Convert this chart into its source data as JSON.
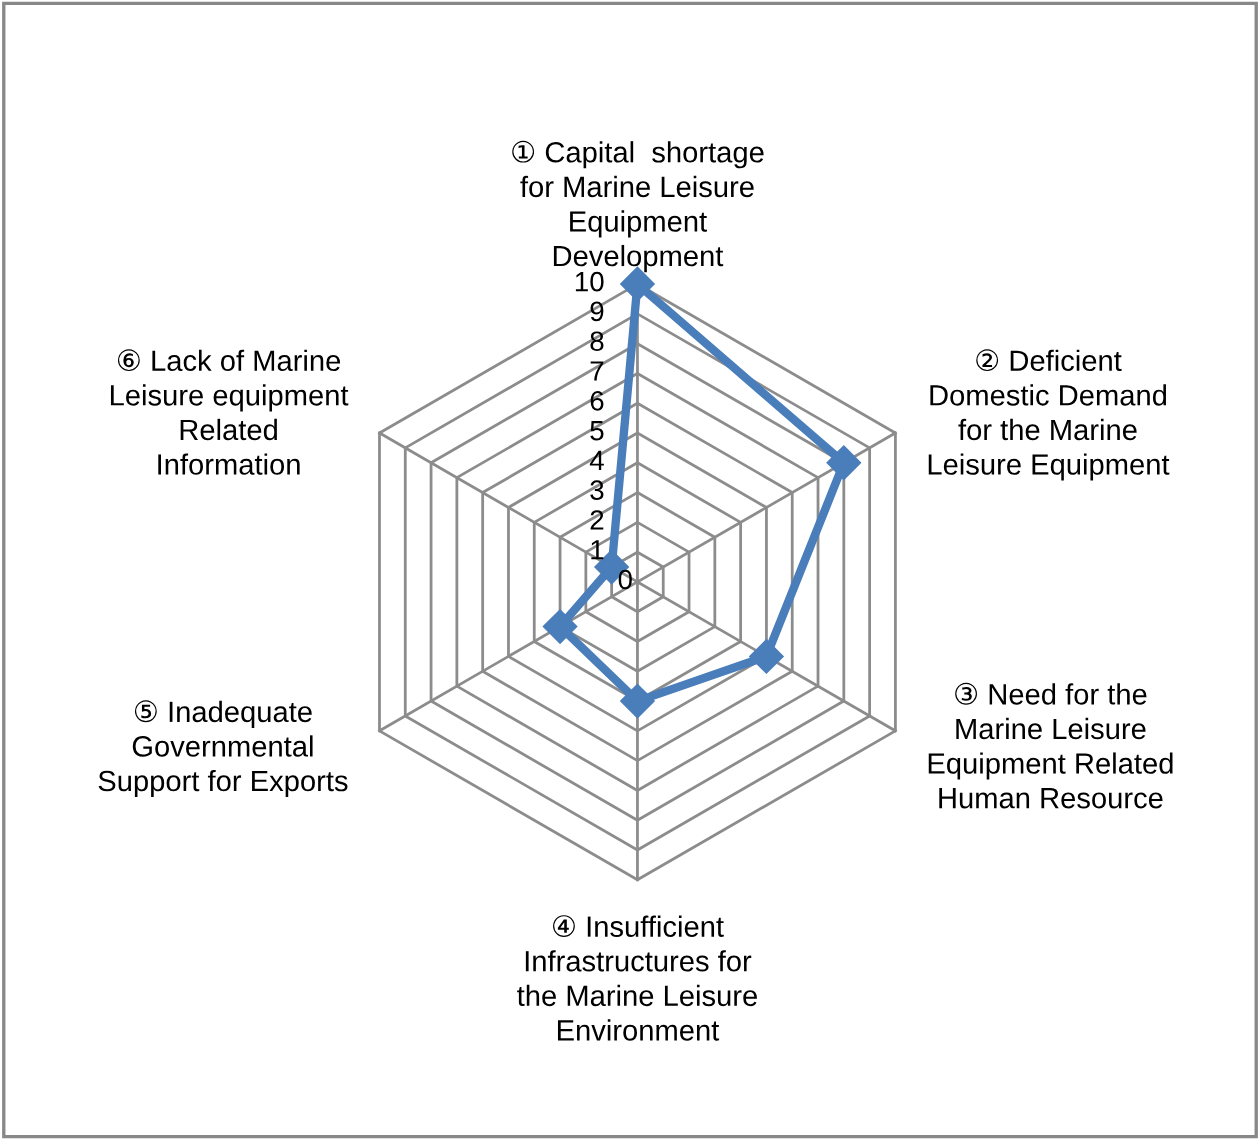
{
  "chart_data": {
    "type": "radar",
    "categories": [
      "① Capital  shortage\nfor Marine Leisure\nEquipment\nDevelopment",
      "② Deficient\nDomestic Demand\nfor the Marine\nLeisure Equipment",
      "③ Need for the\nMarine Leisure\nEquipment Related\nHuman Resource",
      "④ Insufficient\nInfrastructures for\nthe Marine Leisure\nEnvironment",
      "⑤ Inadequate\nGovernmental\nSupport for Exports",
      "⑥ Lack of Marine\nLeisure equipment\nRelated\nInformation"
    ],
    "series": [
      {
        "color": "#4a7ebb",
        "values": [
          10,
          8,
          5,
          4,
          3,
          1
        ]
      }
    ],
    "ylim": [
      0,
      10
    ],
    "yticks": [
      0,
      1,
      2,
      3,
      4,
      5,
      6,
      7,
      8,
      9,
      10
    ],
    "marker": "diamond",
    "grid": true
  }
}
